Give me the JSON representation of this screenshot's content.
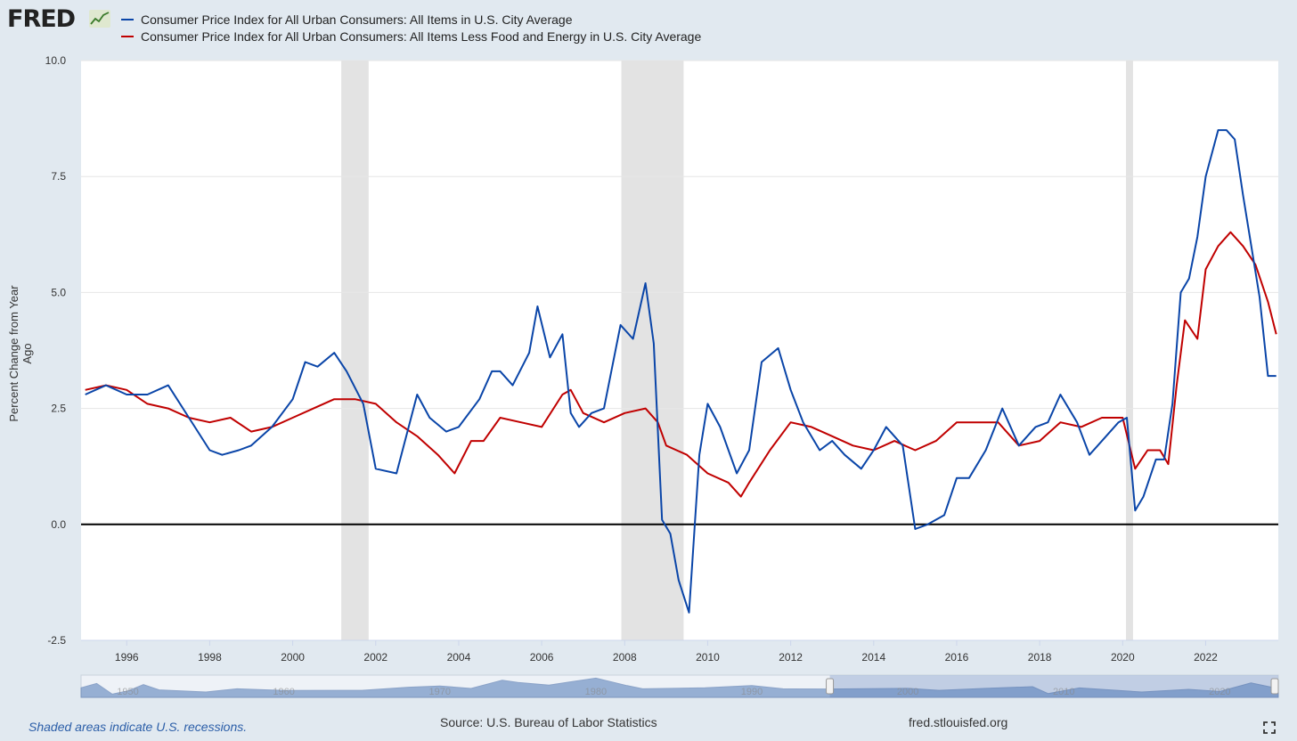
{
  "brand": {
    "logo_text": "FRED",
    "logo_icon": "chart-line-icon"
  },
  "legend": [
    {
      "label": "Consumer Price Index for All Urban Consumers: All Items in U.S. City Average",
      "color": "#0a45a8"
    },
    {
      "label": "Consumer Price Index for All Urban Consumers: All Items Less Food and Energy in U.S. City Average",
      "color": "#c00000"
    }
  ],
  "footer": {
    "recession_note": "Shaded areas indicate U.S. recessions.",
    "source": "Source: U.S. Bureau of Labor Statistics",
    "site": "fred.stlouisfed.org",
    "fullscreen_icon": "fullscreen-icon"
  },
  "navigator": {
    "year_labels": [
      "1950",
      "1960",
      "1970",
      "1980",
      "1990",
      "2000",
      "2010",
      "2020"
    ],
    "selected_range": [
      1995,
      2023.75
    ]
  },
  "chart_data": {
    "type": "line",
    "title": "",
    "xlabel": "",
    "ylabel": "Percent Change from Year Ago",
    "xlim": [
      1994.9,
      2023.75
    ],
    "ylim": [
      -2.5,
      10.0
    ],
    "yticks": [
      -2.5,
      0.0,
      2.5,
      5.0,
      7.5,
      10.0
    ],
    "ytick_labels": [
      "-2.5",
      "0.0",
      "2.5",
      "5.0",
      "7.5",
      "10.0"
    ],
    "xticks": [
      1996,
      1998,
      2000,
      2002,
      2004,
      2006,
      2008,
      2010,
      2012,
      2014,
      2016,
      2018,
      2020,
      2022
    ],
    "grid": "horizontal",
    "recessions": [
      [
        2001.17,
        2001.83
      ],
      [
        2007.92,
        2009.42
      ],
      [
        2020.08,
        2020.25
      ]
    ],
    "series": [
      {
        "name": "Consumer Price Index for All Urban Consumers: All Items in U.S. City Average",
        "color": "#0a45a8",
        "x": [
          1995.0,
          1995.5,
          1996.0,
          1996.5,
          1997.0,
          1997.5,
          1998.0,
          1998.3,
          1998.7,
          1999.0,
          1999.5,
          2000.0,
          2000.3,
          2000.6,
          2001.0,
          2001.3,
          2001.7,
          2002.0,
          2002.5,
          2003.0,
          2003.3,
          2003.7,
          2004.0,
          2004.5,
          2004.8,
          2005.0,
          2005.3,
          2005.7,
          2005.9,
          2006.2,
          2006.5,
          2006.7,
          2006.9,
          2007.2,
          2007.5,
          2007.9,
          2008.2,
          2008.5,
          2008.7,
          2008.9,
          2009.1,
          2009.3,
          2009.55,
          2009.8,
          2010.0,
          2010.3,
          2010.7,
          2011.0,
          2011.3,
          2011.7,
          2012.0,
          2012.3,
          2012.7,
          2013.0,
          2013.3,
          2013.7,
          2014.0,
          2014.3,
          2014.7,
          2015.0,
          2015.3,
          2015.7,
          2016.0,
          2016.3,
          2016.7,
          2017.1,
          2017.5,
          2017.9,
          2018.2,
          2018.5,
          2018.9,
          2019.2,
          2019.5,
          2019.9,
          2020.1,
          2020.3,
          2020.5,
          2020.8,
          2021.0,
          2021.2,
          2021.4,
          2021.6,
          2021.8,
          2022.0,
          2022.3,
          2022.5,
          2022.7,
          2022.9,
          2023.1,
          2023.3,
          2023.5,
          2023.7
        ],
        "y": [
          2.8,
          3.0,
          2.8,
          2.8,
          3.0,
          2.3,
          1.6,
          1.5,
          1.6,
          1.7,
          2.1,
          2.7,
          3.5,
          3.4,
          3.7,
          3.3,
          2.6,
          1.2,
          1.1,
          2.8,
          2.3,
          2.0,
          2.1,
          2.7,
          3.3,
          3.3,
          3.0,
          3.7,
          4.7,
          3.6,
          4.1,
          2.4,
          2.1,
          2.4,
          2.5,
          4.3,
          4.0,
          5.2,
          3.9,
          0.1,
          -0.2,
          -1.2,
          -1.9,
          1.5,
          2.6,
          2.1,
          1.1,
          1.6,
          3.5,
          3.8,
          2.9,
          2.2,
          1.6,
          1.8,
          1.5,
          1.2,
          1.6,
          2.1,
          1.7,
          -0.1,
          0.0,
          0.2,
          1.0,
          1.0,
          1.6,
          2.5,
          1.7,
          2.1,
          2.2,
          2.8,
          2.2,
          1.5,
          1.8,
          2.2,
          2.3,
          0.3,
          0.6,
          1.4,
          1.4,
          2.6,
          5.0,
          5.3,
          6.2,
          7.5,
          8.5,
          8.5,
          8.3,
          7.1,
          6.0,
          4.9,
          3.2,
          3.2
        ]
      },
      {
        "name": "Consumer Price Index for All Urban Consumers: All Items Less Food and Energy in U.S. City Average",
        "color": "#c00000",
        "x": [
          1995.0,
          1995.5,
          1996.0,
          1996.5,
          1997.0,
          1997.5,
          1998.0,
          1998.5,
          1999.0,
          1999.5,
          2000.0,
          2000.5,
          2001.0,
          2001.5,
          2002.0,
          2002.5,
          2003.0,
          2003.5,
          2003.9,
          2004.3,
          2004.6,
          2005.0,
          2005.5,
          2006.0,
          2006.5,
          2006.7,
          2007.0,
          2007.5,
          2008.0,
          2008.5,
          2008.8,
          2009.0,
          2009.5,
          2010.0,
          2010.5,
          2010.8,
          2011.0,
          2011.5,
          2012.0,
          2012.5,
          2013.0,
          2013.5,
          2014.0,
          2014.5,
          2015.0,
          2015.5,
          2016.0,
          2016.5,
          2017.0,
          2017.5,
          2018.0,
          2018.5,
          2019.0,
          2019.5,
          2020.0,
          2020.3,
          2020.6,
          2020.9,
          2021.1,
          2021.3,
          2021.5,
          2021.8,
          2022.0,
          2022.3,
          2022.6,
          2022.9,
          2023.2,
          2023.5,
          2023.7
        ],
        "y": [
          2.9,
          3.0,
          2.9,
          2.6,
          2.5,
          2.3,
          2.2,
          2.3,
          2.0,
          2.1,
          2.3,
          2.5,
          2.7,
          2.7,
          2.6,
          2.2,
          1.9,
          1.5,
          1.1,
          1.8,
          1.8,
          2.3,
          2.2,
          2.1,
          2.8,
          2.9,
          2.4,
          2.2,
          2.4,
          2.5,
          2.2,
          1.7,
          1.5,
          1.1,
          0.9,
          0.6,
          0.9,
          1.6,
          2.2,
          2.1,
          1.9,
          1.7,
          1.6,
          1.8,
          1.6,
          1.8,
          2.2,
          2.2,
          2.2,
          1.7,
          1.8,
          2.2,
          2.1,
          2.3,
          2.3,
          1.2,
          1.6,
          1.6,
          1.3,
          3.0,
          4.4,
          4.0,
          5.5,
          6.0,
          6.3,
          6.0,
          5.6,
          4.8,
          4.1
        ]
      }
    ]
  }
}
